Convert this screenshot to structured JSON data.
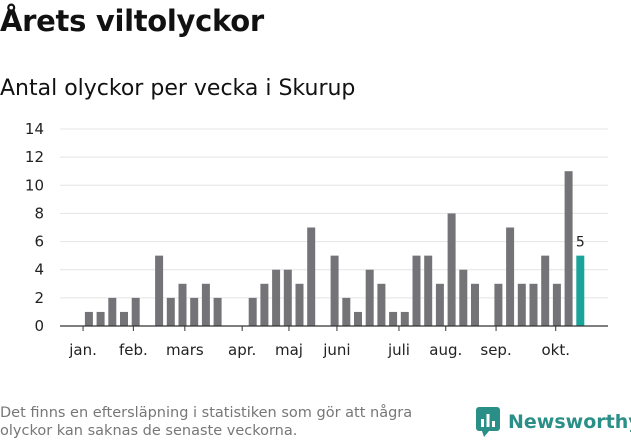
{
  "header": {
    "title": "Årets viltolyckor",
    "subtitle": "Antal olyckor per vecka i Skurup"
  },
  "footer": {
    "note": "Det finns en eftersläpning i statistiken som gör att några olyckor kan saknas de senaste veckorna.",
    "brand": "Newsworthy"
  },
  "colors": {
    "bar": "#747478",
    "highlight": "#1aa59a",
    "brand": "#2a8f86"
  },
  "chart_data": {
    "type": "bar",
    "title": "Antal olyckor per vecka i Skurup",
    "xlabel": "",
    "ylabel": "",
    "ylim": [
      0,
      14
    ],
    "yticks": [
      0,
      2,
      4,
      6,
      8,
      10,
      12,
      14
    ],
    "grid": true,
    "weeks": [
      1,
      2,
      3,
      4,
      5,
      6,
      7,
      8,
      9,
      10,
      11,
      12,
      13,
      14,
      15,
      16,
      17,
      18,
      19,
      20,
      21,
      22,
      23,
      24,
      25,
      26,
      27,
      28,
      29,
      30,
      31,
      32,
      33,
      34,
      35,
      36,
      37,
      38,
      39,
      40,
      41,
      42,
      43,
      44,
      45,
      46
    ],
    "values": [
      0,
      0,
      1,
      1,
      2,
      1,
      2,
      0,
      5,
      2,
      3,
      2,
      3,
      2,
      0,
      0,
      2,
      3,
      4,
      4,
      3,
      7,
      0,
      5,
      2,
      1,
      4,
      3,
      1,
      1,
      5,
      5,
      3,
      8,
      4,
      3,
      0,
      3,
      7,
      3,
      3,
      5,
      3,
      11,
      5,
      0
    ],
    "highlight_index": 44,
    "highlight_label": "5",
    "months": [
      {
        "label": "jan.",
        "week": 2.5
      },
      {
        "label": "feb.",
        "week": 6.8
      },
      {
        "label": "mars",
        "week": 11.2
      },
      {
        "label": "apr.",
        "week": 16.1
      },
      {
        "label": "maj",
        "week": 20.1
      },
      {
        "label": "juni",
        "week": 24.2
      },
      {
        "label": "juli",
        "week": 29.5
      },
      {
        "label": "aug.",
        "week": 33.5
      },
      {
        "label": "sep.",
        "week": 37.8
      },
      {
        "label": "okt.",
        "week": 42.9
      }
    ]
  }
}
